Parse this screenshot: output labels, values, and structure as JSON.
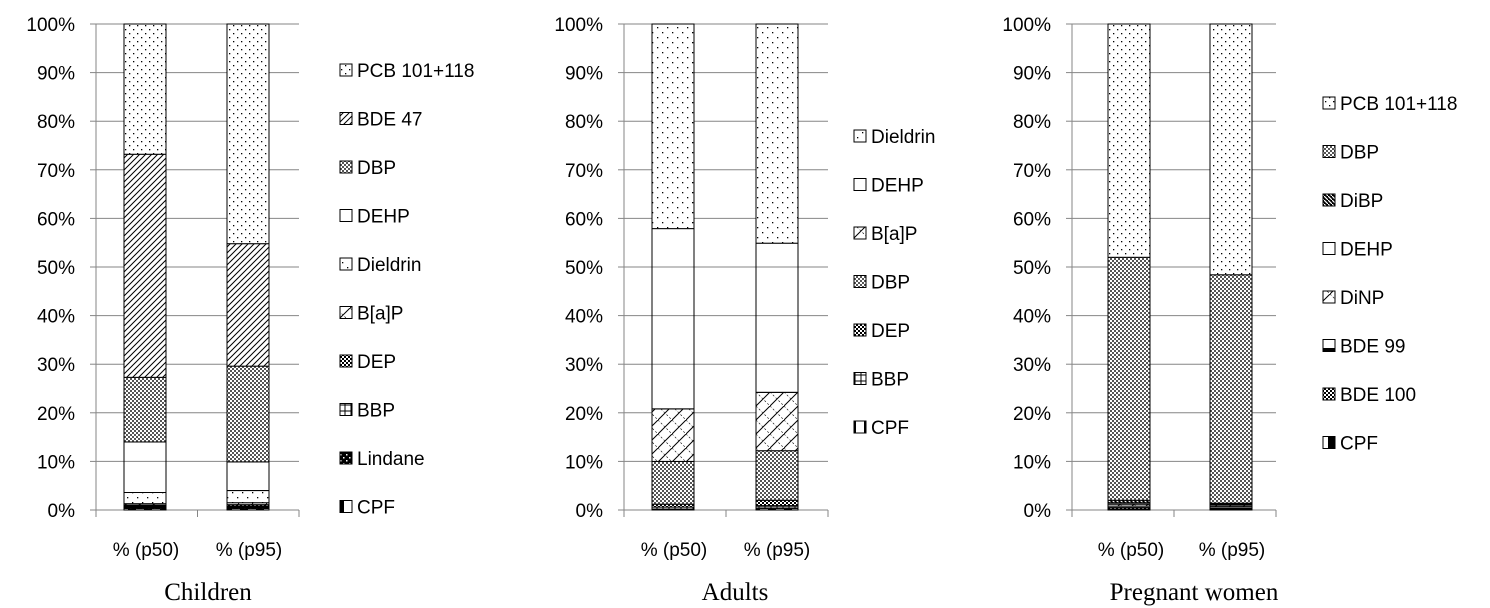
{
  "chart_data": [
    {
      "type": "bar",
      "stacked": true,
      "percent": true,
      "title": "Children",
      "xlabel": "",
      "ylabel": "",
      "ylim": [
        0,
        100
      ],
      "categories": [
        "% (p50)",
        "% (p95)"
      ],
      "y_ticks": [
        "0%",
        "10%",
        "20%",
        "30%",
        "40%",
        "50%",
        "60%",
        "70%",
        "80%",
        "90%",
        "100%"
      ],
      "grid": true,
      "legend_position": "right",
      "series": [
        {
          "name": "CPF",
          "pattern": "vhalf",
          "values": [
            0.3,
            0.3
          ]
        },
        {
          "name": "Lindane",
          "pattern": "checkdots",
          "values": [
            0.4,
            0.4
          ]
        },
        {
          "name": "BBP",
          "pattern": "grid",
          "values": [
            0.1,
            0.1
          ]
        },
        {
          "name": "DEP",
          "pattern": "checker",
          "values": [
            0.2,
            0.3
          ]
        },
        {
          "name": "B[a]P",
          "pattern": "xwide",
          "values": [
            0.3,
            0.4
          ]
        },
        {
          "name": "Dieldrin",
          "pattern": "sparsedots",
          "values": [
            2.3,
            2.5
          ]
        },
        {
          "name": "DEHP",
          "pattern": "solid",
          "values": [
            10.4,
            5.9
          ]
        },
        {
          "name": "DBP",
          "pattern": "crosshatch",
          "values": [
            13.3,
            19.7
          ]
        },
        {
          "name": "BDE 47",
          "pattern": "diag",
          "values": [
            45.9,
            25.2
          ]
        },
        {
          "name": "PCB 101+118",
          "pattern": "dots",
          "values": [
            26.8,
            45.2
          ]
        }
      ]
    },
    {
      "type": "bar",
      "stacked": true,
      "percent": true,
      "title": "Adults",
      "xlabel": "",
      "ylabel": "",
      "ylim": [
        0,
        100
      ],
      "categories": [
        "% (p50)",
        "% (p95)"
      ],
      "y_ticks": [
        "0%",
        "10%",
        "20%",
        "30%",
        "40%",
        "50%",
        "60%",
        "70%",
        "80%",
        "90%",
        "100%"
      ],
      "grid": true,
      "legend_position": "right",
      "series": [
        {
          "name": "CPF",
          "pattern": "vhalf",
          "values": [
            0.2,
            0.3
          ]
        },
        {
          "name": "BBP",
          "pattern": "grid",
          "values": [
            0.4,
            0.6
          ]
        },
        {
          "name": "DEP",
          "pattern": "checker",
          "values": [
            0.6,
            1.1
          ]
        },
        {
          "name": "DBP",
          "pattern": "crosshatch",
          "values": [
            8.8,
            10.2
          ]
        },
        {
          "name": "B[a]P",
          "pattern": "xwide",
          "values": [
            10.8,
            12.0
          ]
        },
        {
          "name": "DEHP",
          "pattern": "solid",
          "values": [
            37.1,
            30.7
          ]
        },
        {
          "name": "Dieldrin",
          "pattern": "sparsedots",
          "values": [
            42.1,
            45.1
          ]
        }
      ]
    },
    {
      "type": "bar",
      "stacked": true,
      "percent": true,
      "title": "Pregnant women",
      "xlabel": "",
      "ylabel": "",
      "ylim": [
        0,
        100
      ],
      "categories": [
        "% (p50)",
        "% (p95)"
      ],
      "y_ticks": [
        "0%",
        "10%",
        "20%",
        "30%",
        "40%",
        "50%",
        "60%",
        "70%",
        "80%",
        "90%",
        "100%"
      ],
      "grid": true,
      "legend_position": "right",
      "series": [
        {
          "name": "CPF",
          "pattern": "vhalf",
          "values": [
            0.2,
            0.2
          ]
        },
        {
          "name": "BDE 100",
          "pattern": "checker",
          "values": [
            0.3,
            0.2
          ]
        },
        {
          "name": "BDE 99",
          "pattern": "hline",
          "values": [
            0.3,
            0.3
          ]
        },
        {
          "name": "DiNP",
          "pattern": "xwide",
          "values": [
            0.4,
            0.3
          ]
        },
        {
          "name": "DEHP",
          "pattern": "solid",
          "values": [
            0.3,
            0.2
          ]
        },
        {
          "name": "DiBP",
          "pattern": "wdiag",
          "values": [
            0.5,
            0.2
          ]
        },
        {
          "name": "DBP",
          "pattern": "crosshatch",
          "values": [
            50.0,
            47.0
          ]
        },
        {
          "name": "PCB 101+118",
          "pattern": "dots",
          "values": [
            48.0,
            51.6
          ]
        }
      ]
    }
  ],
  "legends": [
    [
      "PCB 101+118",
      "BDE 47",
      "DBP",
      "DEHP",
      "Dieldrin",
      "B[a]P",
      "DEP",
      "BBP",
      "Lindane",
      "CPF"
    ],
    [
      "Dieldrin",
      "DEHP",
      "B[a]P",
      "DBP",
      "DEP",
      "BBP",
      "CPF"
    ],
    [
      "PCB 101+118",
      "DBP",
      "DiBP",
      "DEHP",
      "DiNP",
      "BDE 99",
      "BDE 100",
      "CPF"
    ]
  ]
}
